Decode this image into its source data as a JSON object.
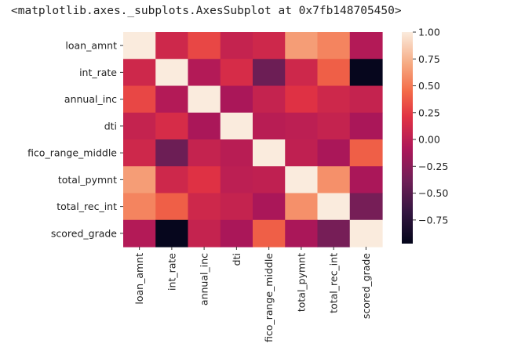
{
  "output": {
    "text": "<matplotlib.axes._subplots.AxesSubplot at 0x7fb148705450>"
  },
  "chart_data": {
    "type": "heatmap",
    "title": "",
    "xlabel": "",
    "ylabel": "",
    "row_labels": [
      "loan_amnt",
      "int_rate",
      "annual_inc",
      "dti",
      "fico_range_middle",
      "total_pymnt",
      "total_rec_int",
      "scored_grade"
    ],
    "col_labels": [
      "loan_amnt",
      "int_rate",
      "annual_inc",
      "dti",
      "fico_range_middle",
      "total_pymnt",
      "total_rec_int",
      "scored_grade"
    ],
    "values": [
      [
        1.0,
        0.1,
        0.3,
        0.05,
        0.1,
        0.65,
        0.55,
        -0.05
      ],
      [
        0.1,
        1.0,
        -0.05,
        0.15,
        -0.4,
        0.1,
        0.4,
        -0.95
      ],
      [
        0.3,
        -0.05,
        1.0,
        -0.1,
        0.05,
        0.2,
        0.1,
        0.05
      ],
      [
        0.05,
        0.15,
        -0.1,
        1.0,
        -0.02,
        0.0,
        0.05,
        -0.1
      ],
      [
        0.1,
        -0.4,
        0.05,
        -0.02,
        1.0,
        0.02,
        -0.1,
        0.4
      ],
      [
        0.65,
        0.1,
        0.2,
        0.0,
        0.02,
        1.0,
        0.6,
        -0.1
      ],
      [
        0.55,
        0.4,
        0.1,
        0.05,
        -0.1,
        0.6,
        1.0,
        -0.35
      ],
      [
        -0.05,
        -0.95,
        0.05,
        -0.1,
        0.4,
        -0.1,
        -0.35,
        1.0
      ]
    ],
    "colorbar": {
      "ticks": [
        1.0,
        0.75,
        0.5,
        0.25,
        0.0,
        -0.25,
        -0.5,
        -0.75
      ],
      "tick_labels": [
        "1.00",
        "0.75",
        "0.50",
        "0.25",
        "0.00",
        "−0.25",
        "−0.50",
        "−0.75"
      ],
      "vmin": -0.97,
      "vmax": 1.0
    },
    "colormap": "rocket",
    "grid": false
  }
}
